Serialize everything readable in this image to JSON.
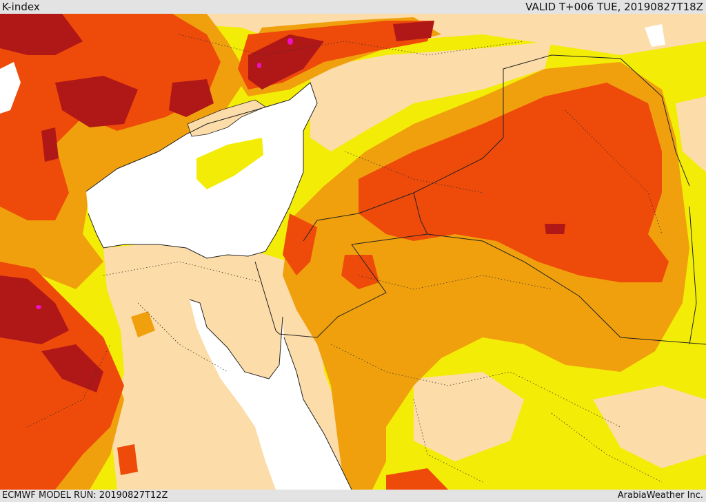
{
  "header": {
    "title": "K-index",
    "valid_time": "VALID T+006 TUE, 20190827T18Z"
  },
  "footer": {
    "model_run": "ECMWF MODEL RUN: 20190827T12Z",
    "credit": "ArabiaWeather Inc."
  },
  "colors": {
    "sea": "#ffffff",
    "k_low": "#fcdca8",
    "k_moderate": "#eeee06",
    "k_elevated": "#f0a00c",
    "k_high": "#ee4a0a",
    "k_very_high": "#b01818",
    "k_extreme": "#ee10c8",
    "borders": "#222222"
  }
}
